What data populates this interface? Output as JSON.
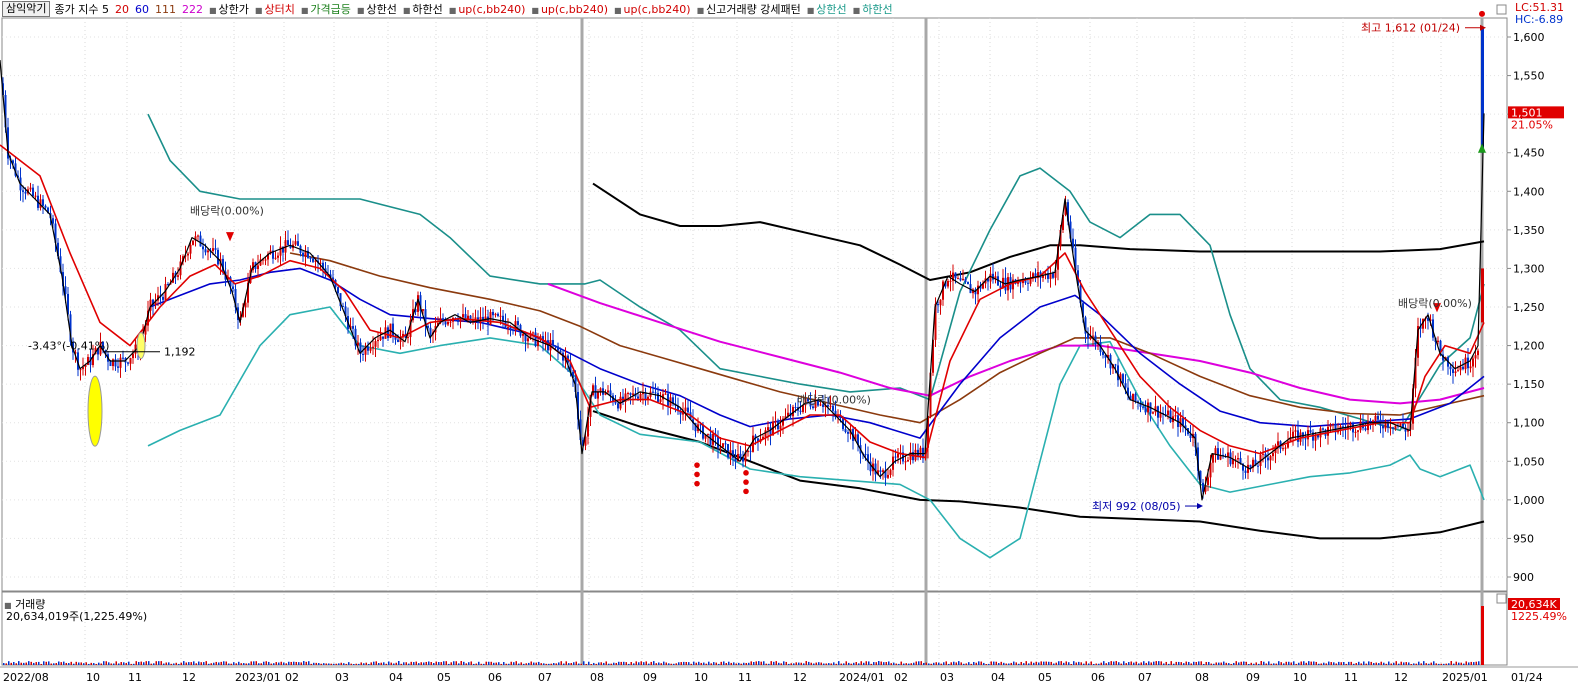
{
  "legend": {
    "title": "삼익악기",
    "items": [
      {
        "text": "종가 지수 5",
        "color": "#000000"
      },
      {
        "text": "20",
        "color": "#d10000"
      },
      {
        "text": "60",
        "color": "#0000cc"
      },
      {
        "text": "111",
        "color": "#8b3a0e"
      },
      {
        "text": "222",
        "color": "#cc00cc"
      },
      {
        "text": "상한가",
        "color": "#000000"
      },
      {
        "text": "상터치",
        "color": "#d10000"
      },
      {
        "text": "가격급등",
        "color": "#1a7f1a"
      },
      {
        "text": "상한선",
        "color": "#000000"
      },
      {
        "text": "하한선",
        "color": "#000000"
      },
      {
        "text": "up(c,bb240)",
        "color": "#d10000"
      },
      {
        "text": "up(c,bb240)",
        "color": "#d10000"
      },
      {
        "text": "up(c,bb240)",
        "color": "#d10000"
      },
      {
        "text": "신고거래량 강세패턴",
        "color": "#000000"
      },
      {
        "text": "상한선",
        "color": "#1a9a8a"
      },
      {
        "text": "하한선",
        "color": "#1a9a8a"
      }
    ]
  },
  "lc": "LC:51.31",
  "hc": "HC:-6.89",
  "volume_legend": "거래량",
  "volume_info": "20,634,019주(1,225.49%)",
  "annotations": {
    "high": "최고 1,612 (01/24)",
    "low": "최저 992 (08/05)",
    "dividend": "배당락(0.00%)",
    "left_pct": "-3.43°(-0.41%)",
    "left_val": "1,192"
  },
  "price_box": {
    "price": "1,501",
    "pct": "21.05%"
  },
  "volume_box": {
    "value": "20,634K",
    "pct": "1225.49%"
  },
  "colors": {
    "up": "#d40000",
    "down": "#0033cc",
    "ma20": "#e00000",
    "ma60": "#0000cc",
    "ma111": "#8b3a0e",
    "ma222": "#dd00dd",
    "env": "#000000",
    "bb_a": "#1a8f8a",
    "bb_b": "#2ab0b0"
  },
  "chart_data": {
    "type": "candlestick",
    "y_ticks": [
      900,
      950,
      1000,
      1050,
      1100,
      1150,
      1200,
      1250,
      1300,
      1350,
      1400,
      1450,
      1500,
      1550,
      1600
    ],
    "y_tick_labels": [
      "900",
      "950",
      "1,000",
      "1,050",
      "1,100",
      "1,150",
      "1,200",
      "1,250",
      "1,300",
      "1,350",
      "1,400",
      "1,450",
      "1,500",
      "1,550",
      "1,600"
    ],
    "x_labels": [
      "2022/08",
      "10",
      "11",
      "12",
      "2023/01",
      "02",
      "03",
      "04",
      "05",
      "06",
      "07",
      "08",
      "09",
      "10",
      "11",
      "12",
      "2024/01",
      "02",
      "03",
      "04",
      "05",
      "06",
      "07",
      "08",
      "09",
      "10",
      "11",
      "12",
      "2025/01",
      "01/24"
    ],
    "close_path": [
      [
        0,
        1570
      ],
      [
        8,
        1450
      ],
      [
        20,
        1410
      ],
      [
        35,
        1390
      ],
      [
        50,
        1370
      ],
      [
        62,
        1290
      ],
      [
        72,
        1200
      ],
      [
        80,
        1170
      ],
      [
        90,
        1180
      ],
      [
        100,
        1200
      ],
      [
        110,
        1180
      ],
      [
        125,
        1180
      ],
      [
        140,
        1200
      ],
      [
        150,
        1250
      ],
      [
        165,
        1270
      ],
      [
        180,
        1300
      ],
      [
        192,
        1340
      ],
      [
        205,
        1330
      ],
      [
        220,
        1310
      ],
      [
        232,
        1270
      ],
      [
        240,
        1230
      ],
      [
        252,
        1300
      ],
      [
        270,
        1320
      ],
      [
        290,
        1330
      ],
      [
        310,
        1320
      ],
      [
        330,
        1290
      ],
      [
        345,
        1240
      ],
      [
        360,
        1190
      ],
      [
        375,
        1210
      ],
      [
        390,
        1220
      ],
      [
        405,
        1205
      ],
      [
        418,
        1260
      ],
      [
        430,
        1210
      ],
      [
        440,
        1230
      ],
      [
        455,
        1240
      ],
      [
        470,
        1230
      ],
      [
        490,
        1235
      ],
      [
        510,
        1230
      ],
      [
        530,
        1210
      ],
      [
        550,
        1200
      ],
      [
        565,
        1185
      ],
      [
        575,
        1150
      ],
      [
        582,
        1060
      ],
      [
        592,
        1140
      ],
      [
        605,
        1140
      ],
      [
        620,
        1125
      ],
      [
        640,
        1140
      ],
      [
        660,
        1135
      ],
      [
        680,
        1120
      ],
      [
        700,
        1090
      ],
      [
        720,
        1070
      ],
      [
        740,
        1050
      ],
      [
        755,
        1080
      ],
      [
        770,
        1090
      ],
      [
        790,
        1110
      ],
      [
        805,
        1125
      ],
      [
        820,
        1130
      ],
      [
        835,
        1110
      ],
      [
        850,
        1090
      ],
      [
        865,
        1055
      ],
      [
        880,
        1030
      ],
      [
        895,
        1050
      ],
      [
        910,
        1060
      ],
      [
        925,
        1060
      ],
      [
        935,
        1250
      ],
      [
        948,
        1290
      ],
      [
        960,
        1280
      ],
      [
        975,
        1270
      ],
      [
        990,
        1290
      ],
      [
        1005,
        1280
      ],
      [
        1020,
        1285
      ],
      [
        1040,
        1290
      ],
      [
        1055,
        1295
      ],
      [
        1065,
        1390
      ],
      [
        1075,
        1300
      ],
      [
        1085,
        1220
      ],
      [
        1100,
        1200
      ],
      [
        1115,
        1170
      ],
      [
        1130,
        1130
      ],
      [
        1150,
        1120
      ],
      [
        1165,
        1110
      ],
      [
        1180,
        1100
      ],
      [
        1195,
        1080
      ],
      [
        1202,
        1000
      ],
      [
        1212,
        1060
      ],
      [
        1230,
        1055
      ],
      [
        1250,
        1040
      ],
      [
        1270,
        1060
      ],
      [
        1290,
        1080
      ],
      [
        1310,
        1085
      ],
      [
        1330,
        1090
      ],
      [
        1350,
        1095
      ],
      [
        1370,
        1100
      ],
      [
        1390,
        1100
      ],
      [
        1410,
        1090
      ],
      [
        1418,
        1220
      ],
      [
        1428,
        1240
      ],
      [
        1440,
        1190
      ],
      [
        1455,
        1170
      ],
      [
        1470,
        1180
      ],
      [
        1478,
        1200
      ],
      [
        1484,
        1501
      ]
    ],
    "ma20": [
      [
        0,
        1460
      ],
      [
        40,
        1420
      ],
      [
        70,
        1320
      ],
      [
        100,
        1230
      ],
      [
        130,
        1200
      ],
      [
        160,
        1250
      ],
      [
        190,
        1290
      ],
      [
        215,
        1305
      ],
      [
        235,
        1280
      ],
      [
        260,
        1290
      ],
      [
        290,
        1310
      ],
      [
        320,
        1300
      ],
      [
        345,
        1270
      ],
      [
        370,
        1220
      ],
      [
        400,
        1210
      ],
      [
        430,
        1230
      ],
      [
        460,
        1235
      ],
      [
        500,
        1230
      ],
      [
        540,
        1210
      ],
      [
        570,
        1180
      ],
      [
        590,
        1120
      ],
      [
        620,
        1130
      ],
      [
        650,
        1130
      ],
      [
        690,
        1110
      ],
      [
        720,
        1080
      ],
      [
        750,
        1070
      ],
      [
        780,
        1090
      ],
      [
        810,
        1110
      ],
      [
        840,
        1110
      ],
      [
        870,
        1075
      ],
      [
        900,
        1060
      ],
      [
        925,
        1055
      ],
      [
        950,
        1180
      ],
      [
        980,
        1260
      ],
      [
        1010,
        1280
      ],
      [
        1040,
        1290
      ],
      [
        1065,
        1320
      ],
      [
        1085,
        1270
      ],
      [
        1110,
        1220
      ],
      [
        1140,
        1160
      ],
      [
        1170,
        1120
      ],
      [
        1200,
        1090
      ],
      [
        1230,
        1070
      ],
      [
        1260,
        1060
      ],
      [
        1300,
        1080
      ],
      [
        1340,
        1090
      ],
      [
        1380,
        1100
      ],
      [
        1410,
        1100
      ],
      [
        1425,
        1160
      ],
      [
        1445,
        1200
      ],
      [
        1470,
        1190
      ],
      [
        1484,
        1230
      ]
    ],
    "ma60": [
      [
        150,
        1250
      ],
      [
        180,
        1265
      ],
      [
        210,
        1280
      ],
      [
        240,
        1285
      ],
      [
        270,
        1295
      ],
      [
        300,
        1300
      ],
      [
        330,
        1285
      ],
      [
        360,
        1260
      ],
      [
        390,
        1240
      ],
      [
        430,
        1235
      ],
      [
        480,
        1230
      ],
      [
        530,
        1215
      ],
      [
        570,
        1190
      ],
      [
        600,
        1170
      ],
      [
        640,
        1150
      ],
      [
        680,
        1135
      ],
      [
        720,
        1110
      ],
      [
        750,
        1095
      ],
      [
        790,
        1105
      ],
      [
        830,
        1110
      ],
      [
        870,
        1100
      ],
      [
        920,
        1080
      ],
      [
        960,
        1150
      ],
      [
        1000,
        1210
      ],
      [
        1040,
        1250
      ],
      [
        1075,
        1265
      ],
      [
        1100,
        1240
      ],
      [
        1140,
        1190
      ],
      [
        1180,
        1150
      ],
      [
        1220,
        1115
      ],
      [
        1260,
        1100
      ],
      [
        1310,
        1095
      ],
      [
        1360,
        1100
      ],
      [
        1410,
        1105
      ],
      [
        1450,
        1125
      ],
      [
        1484,
        1160
      ]
    ],
    "ma111": [
      [
        290,
        1320
      ],
      [
        330,
        1310
      ],
      [
        380,
        1290
      ],
      [
        430,
        1275
      ],
      [
        490,
        1260
      ],
      [
        540,
        1245
      ],
      [
        580,
        1225
      ],
      [
        620,
        1200
      ],
      [
        660,
        1185
      ],
      [
        700,
        1170
      ],
      [
        740,
        1155
      ],
      [
        780,
        1140
      ],
      [
        830,
        1125
      ],
      [
        880,
        1110
      ],
      [
        920,
        1100
      ],
      [
        960,
        1130
      ],
      [
        1000,
        1165
      ],
      [
        1040,
        1190
      ],
      [
        1075,
        1210
      ],
      [
        1110,
        1210
      ],
      [
        1150,
        1190
      ],
      [
        1200,
        1160
      ],
      [
        1250,
        1135
      ],
      [
        1300,
        1120
      ],
      [
        1350,
        1112
      ],
      [
        1400,
        1110
      ],
      [
        1450,
        1125
      ],
      [
        1484,
        1135
      ]
    ],
    "ma222": [
      [
        548,
        1280
      ],
      [
        600,
        1255
      ],
      [
        660,
        1230
      ],
      [
        720,
        1205
      ],
      [
        780,
        1185
      ],
      [
        840,
        1165
      ],
      [
        890,
        1145
      ],
      [
        930,
        1135
      ],
      [
        970,
        1160
      ],
      [
        1010,
        1180
      ],
      [
        1060,
        1200
      ],
      [
        1100,
        1200
      ],
      [
        1150,
        1190
      ],
      [
        1200,
        1180
      ],
      [
        1250,
        1165
      ],
      [
        1300,
        1145
      ],
      [
        1350,
        1130
      ],
      [
        1400,
        1125
      ],
      [
        1440,
        1130
      ],
      [
        1484,
        1145
      ]
    ],
    "env_upper": [
      [
        593,
        1410
      ],
      [
        640,
        1370
      ],
      [
        680,
        1355
      ],
      [
        720,
        1355
      ],
      [
        760,
        1360
      ],
      [
        810,
        1345
      ],
      [
        860,
        1330
      ],
      [
        900,
        1305
      ],
      [
        930,
        1285
      ],
      [
        970,
        1295
      ],
      [
        1010,
        1315
      ],
      [
        1050,
        1330
      ],
      [
        1080,
        1330
      ],
      [
        1130,
        1325
      ],
      [
        1200,
        1322
      ],
      [
        1280,
        1322
      ],
      [
        1380,
        1322
      ],
      [
        1440,
        1325
      ],
      [
        1484,
        1335
      ]
    ],
    "env_lower": [
      [
        593,
        1115
      ],
      [
        640,
        1095
      ],
      [
        700,
        1075
      ],
      [
        750,
        1050
      ],
      [
        800,
        1025
      ],
      [
        860,
        1015
      ],
      [
        920,
        1000
      ],
      [
        960,
        998
      ],
      [
        1020,
        990
      ],
      [
        1080,
        978
      ],
      [
        1140,
        975
      ],
      [
        1200,
        972
      ],
      [
        1260,
        960
      ],
      [
        1320,
        950
      ],
      [
        1380,
        950
      ],
      [
        1440,
        958
      ],
      [
        1484,
        972
      ]
    ],
    "bb_a": [
      [
        148,
        1500
      ],
      [
        170,
        1440
      ],
      [
        200,
        1400
      ],
      [
        240,
        1390
      ],
      [
        300,
        1390
      ],
      [
        360,
        1390
      ],
      [
        420,
        1370
      ],
      [
        450,
        1340
      ],
      [
        490,
        1290
      ],
      [
        540,
        1280
      ],
      [
        585,
        1280
      ],
      [
        600,
        1285
      ],
      [
        640,
        1250
      ],
      [
        680,
        1220
      ],
      [
        720,
        1170
      ],
      [
        760,
        1160
      ],
      [
        800,
        1150
      ],
      [
        850,
        1140
      ],
      [
        900,
        1145
      ],
      [
        930,
        1130
      ],
      [
        960,
        1270
      ],
      [
        990,
        1350
      ],
      [
        1020,
        1420
      ],
      [
        1040,
        1430
      ],
      [
        1070,
        1400
      ],
      [
        1090,
        1360
      ],
      [
        1120,
        1340
      ],
      [
        1150,
        1370
      ],
      [
        1180,
        1370
      ],
      [
        1210,
        1330
      ],
      [
        1230,
        1240
      ],
      [
        1250,
        1170
      ],
      [
        1280,
        1130
      ],
      [
        1320,
        1120
      ],
      [
        1360,
        1105
      ],
      [
        1400,
        1090
      ],
      [
        1440,
        1175
      ],
      [
        1470,
        1210
      ],
      [
        1484,
        1280
      ]
    ],
    "bb_b": [
      [
        148,
        1070
      ],
      [
        180,
        1090
      ],
      [
        220,
        1110
      ],
      [
        260,
        1200
      ],
      [
        290,
        1240
      ],
      [
        330,
        1250
      ],
      [
        360,
        1200
      ],
      [
        400,
        1190
      ],
      [
        440,
        1200
      ],
      [
        490,
        1210
      ],
      [
        540,
        1200
      ],
      [
        575,
        1160
      ],
      [
        600,
        1110
      ],
      [
        640,
        1085
      ],
      [
        700,
        1075
      ],
      [
        750,
        1040
      ],
      [
        800,
        1030
      ],
      [
        850,
        1025
      ],
      [
        900,
        1020
      ],
      [
        930,
        1000
      ],
      [
        960,
        950
      ],
      [
        990,
        925
      ],
      [
        1020,
        950
      ],
      [
        1040,
        1050
      ],
      [
        1060,
        1150
      ],
      [
        1080,
        1200
      ],
      [
        1110,
        1205
      ],
      [
        1140,
        1130
      ],
      [
        1170,
        1070
      ],
      [
        1200,
        1020
      ],
      [
        1230,
        1010
      ],
      [
        1270,
        1020
      ],
      [
        1310,
        1030
      ],
      [
        1350,
        1035
      ],
      [
        1390,
        1045
      ],
      [
        1410,
        1058
      ],
      [
        1420,
        1040
      ],
      [
        1440,
        1030
      ],
      [
        1470,
        1045
      ],
      [
        1484,
        1000
      ]
    ],
    "high": {
      "value": 1612,
      "date": "01/24"
    },
    "low": {
      "value": 992,
      "date": "08/05"
    }
  }
}
